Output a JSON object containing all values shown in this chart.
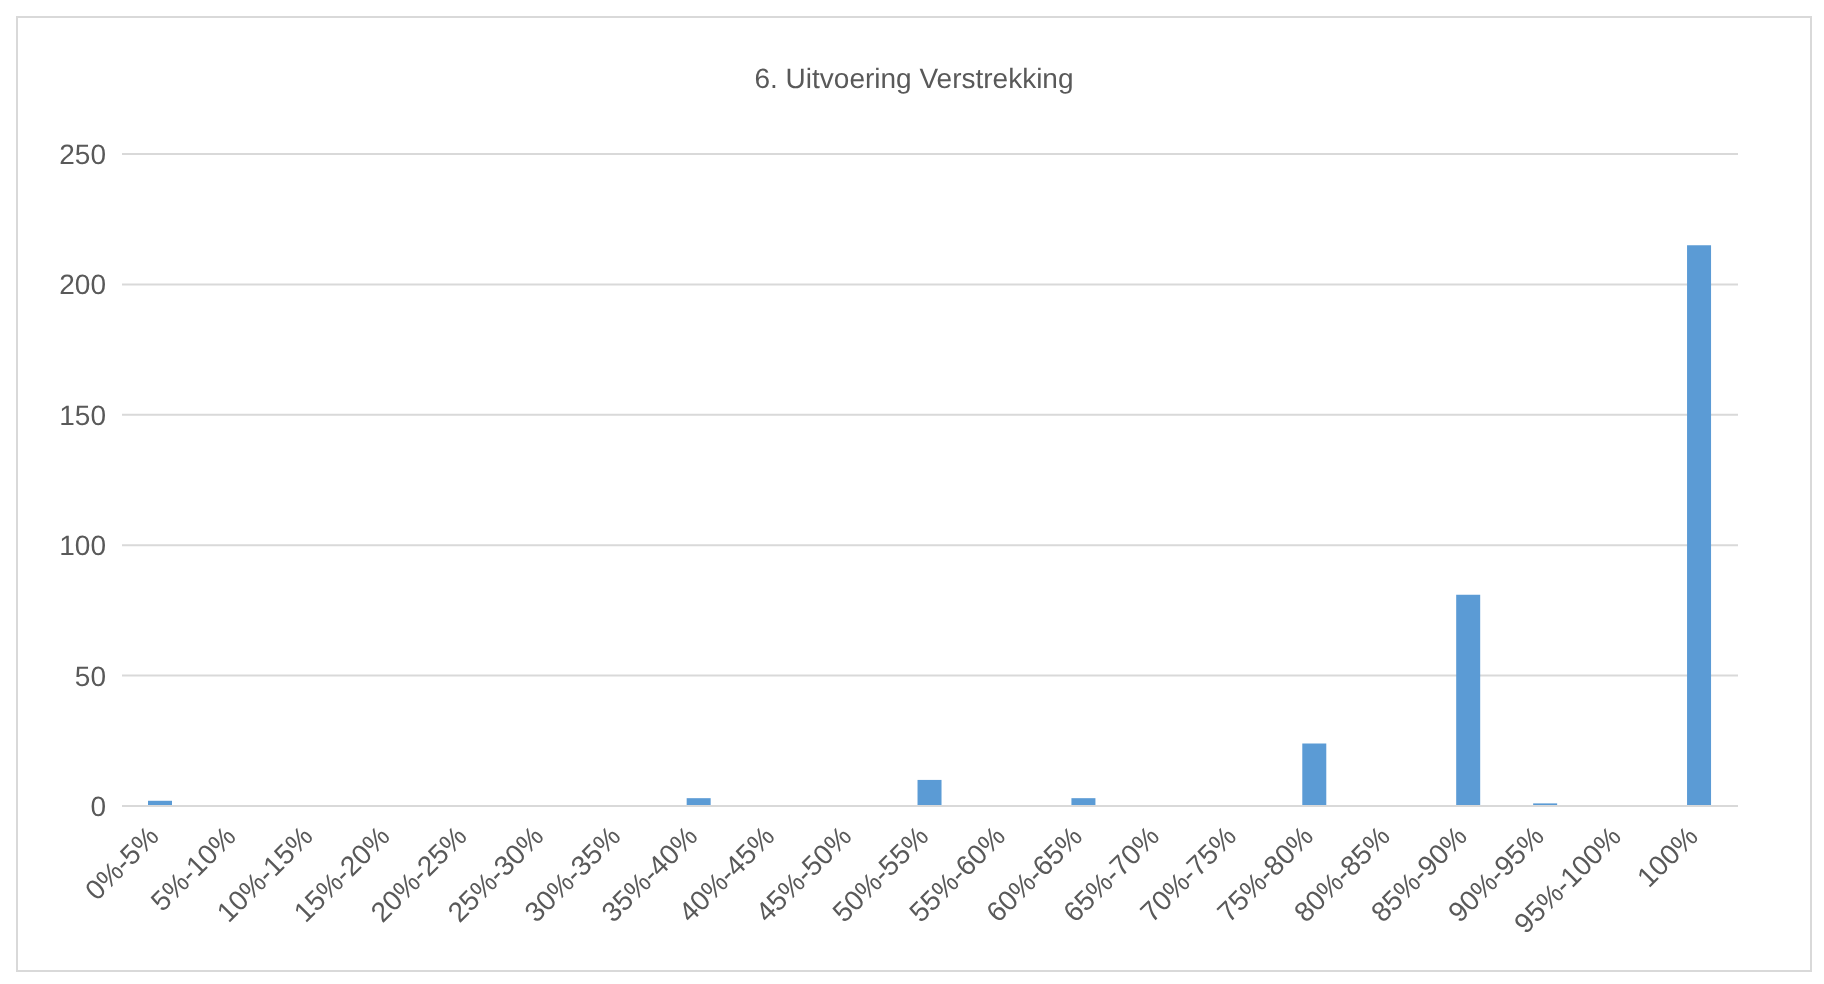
{
  "chart_data": {
    "type": "bar",
    "title": "6. Uitvoering Verstrekking",
    "categories": [
      "0%-5%",
      "5%-10%",
      "10%-15%",
      "15%-20%",
      "20%-25%",
      "25%-30%",
      "30%-35%",
      "35%-40%",
      "40%-45%",
      "45%-50%",
      "50%-55%",
      "55%-60%",
      "60%-65%",
      "65%-70%",
      "70%-75%",
      "75%-80%",
      "80%-85%",
      "85%-90%",
      "90%-95%",
      "95%-100%",
      "100%"
    ],
    "values": [
      2,
      0,
      0,
      0,
      0,
      0,
      0,
      3,
      0,
      0,
      10,
      0,
      3,
      0,
      0,
      24,
      0,
      81,
      1,
      0,
      215
    ],
    "color": "#5b9bd5",
    "ylim": [
      0,
      250
    ],
    "yticks": [
      0,
      50,
      100,
      150,
      200,
      250
    ],
    "grid": "y",
    "legend": false
  }
}
